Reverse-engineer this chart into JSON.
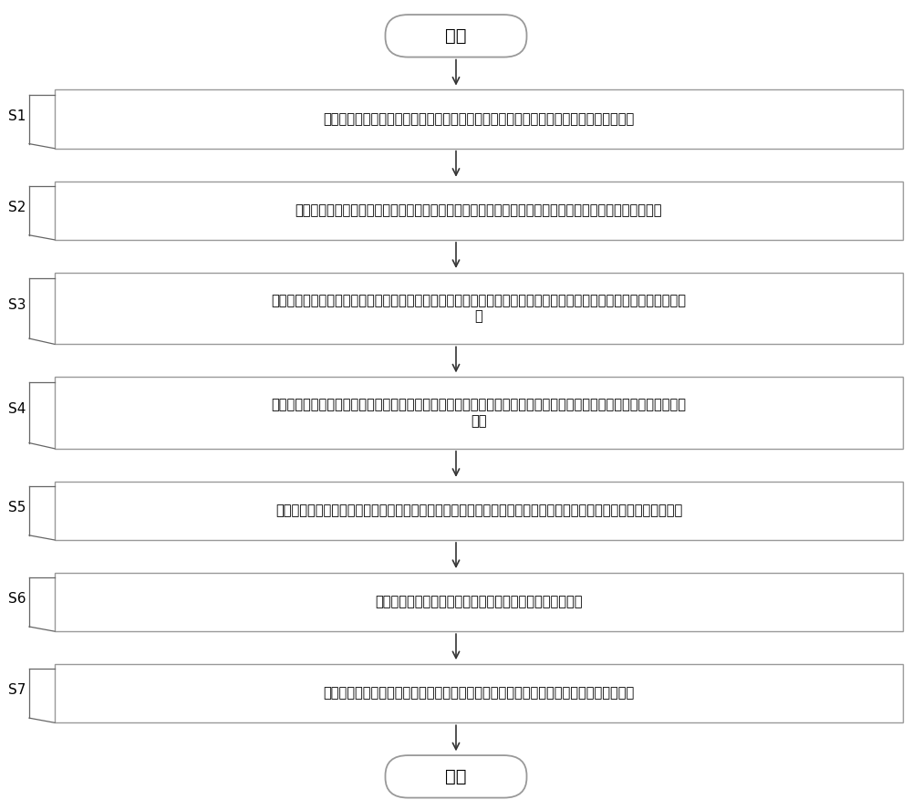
{
  "background_color": "#ffffff",
  "fig_width": 10.0,
  "fig_height": 8.88,
  "start_end_text_start": "开始",
  "start_end_text_end": "结束",
  "steps": [
    {
      "label": "S1",
      "text": "对信号光源以及大功率激光器发出启动指令，同时将光电复合缆中的导线通电并设置参数",
      "two_line": false
    },
    {
      "label": "S2",
      "text": "对信号光源和大功率激光器发出的光信号进行融合，并将融合后的光信经光电复合缆传输至光纤传感器中",
      "two_line": false
    },
    {
      "label": "S3",
      "text": "调整光电复合缆和光纤传感器中导线的电流和调整电热退火的温度，并对光电复合缆中的光纤和光纤传感器进行电热退\n火",
      "two_line": true
    },
    {
      "label": "S4",
      "text": "调整大功率激光器发出的光的光强和波长，并利用大功率激光器产生的光对光电复合缆中的光纤和光纤传感器进行光热\n退火",
      "two_line": true
    },
    {
      "label": "S5",
      "text": "经光热退火和电热退火后，将所述光纤传感器中的后向散射光传入至光电探测器中，并将其光信号转换成模拟电信号",
      "two_line": false
    },
    {
      "label": "S6",
      "text": "采集所述模拟电信号，并将所述模拟电信号转换成数字信号",
      "two_line": false
    },
    {
      "label": "S7",
      "text": "对所述数据信号进行解调得到待测参数，并完成分布式光热退火和电热退火的抗辐射处理",
      "two_line": false
    }
  ],
  "box_color": "#ffffff",
  "box_edge_color": "#999999",
  "text_color": "#000000",
  "arrow_color": "#333333",
  "font_size": 10.5,
  "label_font_size": 11,
  "capsule_font_size": 14
}
